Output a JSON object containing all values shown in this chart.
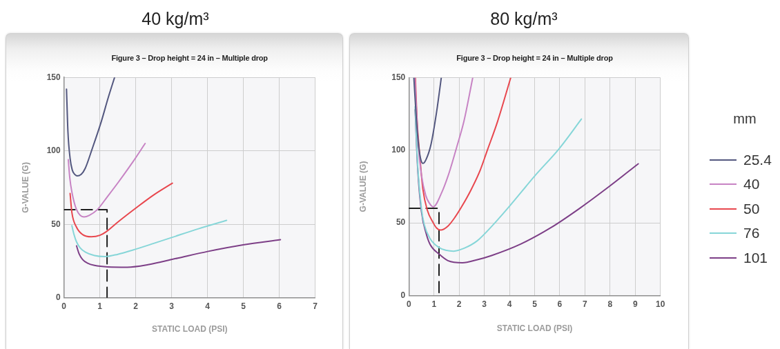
{
  "chart_data": [
    {
      "type": "line",
      "title": "40 kg/m³",
      "subtitle": "Figure 3 – Drop height = 24 in – Multiple drop",
      "xlabel": "STATIC LOAD (PSI)",
      "ylabel": "G-VALUE (G)",
      "xlim": [
        0,
        7
      ],
      "xticks": [
        0,
        1,
        2,
        3,
        4,
        5,
        6,
        7
      ],
      "ylim": [
        0,
        150
      ],
      "yticks": [
        0,
        50,
        100,
        150
      ],
      "grid": true,
      "marker": "none",
      "series": [
        {
          "color": "#53577f",
          "x": [
            0.07,
            0.11,
            0.17,
            0.23,
            0.3,
            0.37,
            0.48,
            0.59,
            0.78,
            1.04,
            1.23,
            1.41
          ],
          "values": [
            142,
            113,
            95,
            87,
            84,
            83,
            84,
            88,
            101,
            120,
            136,
            150
          ]
        },
        {
          "color": "#c783c4",
          "x": [
            0.12,
            0.16,
            0.22,
            0.35,
            0.56,
            0.7,
            0.93,
            1.2,
            1.51,
            1.92,
            2.26
          ],
          "values": [
            94,
            82,
            72,
            60,
            55,
            56,
            60,
            68.5,
            78.5,
            92.5,
            105
          ]
        },
        {
          "color": "#e8474e",
          "x": [
            0.17,
            0.22,
            0.35,
            0.52,
            0.76,
            1.0,
            1.18,
            1.5,
            2.0,
            2.5,
            3.02
          ],
          "values": [
            71,
            58,
            48,
            43,
            41.5,
            42.5,
            45,
            51.5,
            61,
            70,
            78
          ]
        },
        {
          "color": "#86d6d8",
          "x": [
            0.22,
            0.28,
            0.35,
            0.45,
            0.6,
            0.85,
            1.14,
            1.5,
            1.92,
            2.5,
            3.0,
            3.75,
            4.53
          ],
          "values": [
            49,
            43,
            38,
            34,
            31,
            28.7,
            28,
            29.6,
            32.5,
            37,
            41,
            47,
            52.7
          ]
        },
        {
          "color": "#7d3f87",
          "x": [
            0.35,
            0.42,
            0.52,
            0.66,
            0.85,
            1.22,
            1.76,
            2.34,
            3.17,
            4.0,
            4.99,
            6.03
          ],
          "values": [
            35.3,
            30,
            26,
            23.5,
            22,
            21,
            20.8,
            22.5,
            27,
            31.5,
            36,
            39.5
          ]
        },
        {
          "color": "#1f1f1f",
          "line_style": "dashed",
          "x": [
            0,
            1.2,
            1.2
          ],
          "values": [
            60,
            60,
            0
          ]
        }
      ]
    },
    {
      "type": "line",
      "title": "80 kg/m³",
      "subtitle": "Figure 3 – Drop height = 24 in – Multiple drop",
      "xlabel": "STATIC LOAD (PSI)",
      "ylabel": "G-VALUE (G)",
      "xlim": [
        0,
        10
      ],
      "xticks": [
        0,
        1,
        2,
        3,
        4,
        5,
        6,
        7,
        8,
        9,
        10
      ],
      "ylim": [
        0,
        150
      ],
      "yticks": [
        0,
        50,
        100,
        150
      ],
      "grid": true,
      "marker": "none",
      "legend": "right",
      "legend_title": "mm",
      "series": [
        {
          "name": "25.4",
          "color": "#53577f",
          "x": [
            0.2,
            0.3,
            0.39,
            0.47,
            0.56,
            0.68,
            0.88,
            1.1,
            1.29
          ],
          "values": [
            150,
            121,
            103,
            94,
            91,
            93.5,
            104,
            126,
            150
          ]
        },
        {
          "name": "40",
          "color": "#c783c4",
          "x": [
            0.24,
            0.38,
            0.5,
            0.67,
            0.8,
            0.97,
            1.31,
            1.61,
            1.9,
            2.19,
            2.54
          ],
          "values": [
            150,
            103,
            83,
            69,
            64,
            61,
            71,
            85,
            102,
            120,
            150
          ]
        },
        {
          "name": "50",
          "color": "#e8474e",
          "x": [
            0.26,
            0.32,
            0.44,
            0.56,
            0.73,
            0.97,
            1.1,
            1.26,
            1.55,
            1.84,
            2.13,
            2.48,
            2.83,
            3.12,
            3.53,
            4.05
          ],
          "values": [
            150,
            123,
            95,
            73,
            59,
            50,
            46.5,
            45,
            47.7,
            54,
            62,
            73,
            86,
            100,
            120,
            150
          ]
        },
        {
          "name": "76",
          "color": "#86d6d8",
          "x": [
            0.25,
            0.35,
            0.5,
            0.61,
            0.85,
            1.2,
            1.5,
            1.78,
            2.2,
            2.71,
            3.29,
            3.88,
            5.04,
            5.97,
            6.86
          ],
          "values": [
            130,
            90,
            60,
            49,
            39,
            33,
            31,
            30.5,
            32.5,
            37.5,
            47.5,
            59,
            83,
            101,
            121.5
          ]
        },
        {
          "name": "101",
          "color": "#7d3f87",
          "x": [
            0.25,
            0.35,
            0.5,
            0.7,
            0.85,
            1.2,
            1.55,
            2.13,
            2.7,
            3.29,
            4.46,
            5.63,
            6.79,
            7.96,
            9.12
          ],
          "values": [
            128,
            88,
            58,
            42,
            35,
            28.5,
            24,
            22.5,
            24.5,
            27.5,
            35.5,
            46.5,
            60,
            75,
            90.7
          ]
        },
        {
          "color": "#1f1f1f",
          "line_style": "dashed",
          "x": [
            0,
            1.2,
            1.2
          ],
          "values": [
            60,
            60,
            0
          ]
        }
      ]
    }
  ]
}
